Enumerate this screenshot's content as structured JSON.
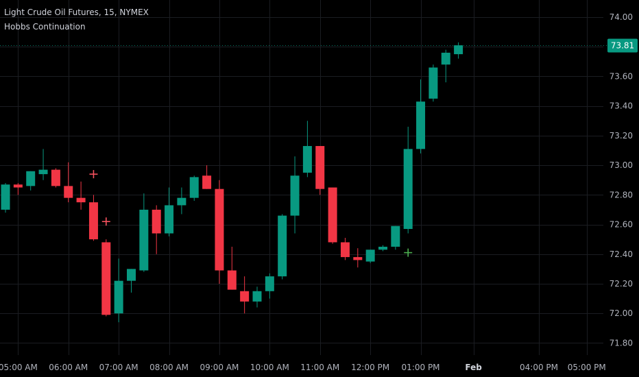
{
  "legend": {
    "title": "Light Crude Oil Futures, 15, NYMEX",
    "indicator": "Hobbs Continuation"
  },
  "colors": {
    "up": "#089981",
    "down": "#f23645",
    "up_marker": "#4caf50",
    "down_marker": "#f7525f",
    "price_label_bg": "#089981",
    "grid": "#1b1d22",
    "background": "#000000"
  },
  "chart_data": {
    "type": "candlestick",
    "title": "Light Crude Oil Futures, 15, NYMEX",
    "interval": "15",
    "last_price": 73.81,
    "last_price_label": "73.81",
    "ylim": [
      71.7,
      74.04
    ],
    "y_ticks": [
      "74.00",
      "73.80",
      "73.60",
      "73.40",
      "73.20",
      "73.00",
      "72.80",
      "72.60",
      "72.40",
      "72.20",
      "72.00",
      "71.80"
    ],
    "y_tick_values": [
      74.0,
      73.8,
      73.6,
      73.4,
      73.2,
      73.0,
      72.8,
      72.6,
      72.4,
      72.2,
      72.0,
      71.8
    ],
    "x_ticks": [
      {
        "label": "05:00 AM",
        "bar": 1
      },
      {
        "label": "06:00 AM",
        "bar": 5
      },
      {
        "label": "07:00 AM",
        "bar": 9
      },
      {
        "label": "08:00 AM",
        "bar": 13
      },
      {
        "label": "09:00 AM",
        "bar": 17
      },
      {
        "label": "10:00 AM",
        "bar": 21
      },
      {
        "label": "11:00 AM",
        "bar": 25
      },
      {
        "label": "12:00 PM",
        "bar": 29
      },
      {
        "label": "01:00 PM",
        "bar": 33
      },
      {
        "label": "Feb",
        "bar": 37.2,
        "bold": true
      },
      {
        "label": "04:00 PM",
        "bar": 42.4
      },
      {
        "label": "05:00 PM",
        "bar": 46.2
      }
    ],
    "candles": [
      {
        "o": 72.7,
        "h": 72.88,
        "l": 72.68,
        "c": 72.87
      },
      {
        "o": 72.87,
        "h": 72.88,
        "l": 72.8,
        "c": 72.85
      },
      {
        "o": 72.86,
        "h": 72.96,
        "l": 72.83,
        "c": 72.96
      },
      {
        "o": 72.94,
        "h": 73.11,
        "l": 72.9,
        "c": 72.97
      },
      {
        "o": 72.97,
        "h": 72.98,
        "l": 72.85,
        "c": 72.86
      },
      {
        "o": 72.86,
        "h": 73.02,
        "l": 72.75,
        "c": 72.78
      },
      {
        "o": 72.78,
        "h": 72.89,
        "l": 72.7,
        "c": 72.75
      },
      {
        "o": 72.75,
        "h": 72.8,
        "l": 72.49,
        "c": 72.5
      },
      {
        "o": 72.48,
        "h": 72.5,
        "l": 71.98,
        "c": 71.99
      },
      {
        "o": 72.0,
        "h": 72.37,
        "l": 71.94,
        "c": 72.22
      },
      {
        "o": 72.22,
        "h": 72.3,
        "l": 72.14,
        "c": 72.3
      },
      {
        "o": 72.29,
        "h": 72.81,
        "l": 72.28,
        "c": 72.7
      },
      {
        "o": 72.7,
        "h": 72.73,
        "l": 72.4,
        "c": 72.54
      },
      {
        "o": 72.54,
        "h": 72.85,
        "l": 72.52,
        "c": 72.73
      },
      {
        "o": 72.73,
        "h": 72.85,
        "l": 72.67,
        "c": 72.78
      },
      {
        "o": 72.78,
        "h": 72.93,
        "l": 72.76,
        "c": 72.92
      },
      {
        "o": 72.93,
        "h": 73.0,
        "l": 72.84,
        "c": 72.84
      },
      {
        "o": 72.84,
        "h": 72.9,
        "l": 72.2,
        "c": 72.29
      },
      {
        "o": 72.29,
        "h": 72.45,
        "l": 72.16,
        "c": 72.16
      },
      {
        "o": 72.15,
        "h": 72.25,
        "l": 72.0,
        "c": 72.08
      },
      {
        "o": 72.08,
        "h": 72.18,
        "l": 72.04,
        "c": 72.15
      },
      {
        "o": 72.15,
        "h": 72.27,
        "l": 72.1,
        "c": 72.25
      },
      {
        "o": 72.25,
        "h": 72.67,
        "l": 72.23,
        "c": 72.66
      },
      {
        "o": 72.66,
        "h": 73.06,
        "l": 72.54,
        "c": 72.93
      },
      {
        "o": 72.95,
        "h": 73.3,
        "l": 72.92,
        "c": 73.13
      },
      {
        "o": 73.13,
        "h": 73.13,
        "l": 72.8,
        "c": 72.84
      },
      {
        "o": 72.85,
        "h": 72.85,
        "l": 72.47,
        "c": 72.48
      },
      {
        "o": 72.48,
        "h": 72.51,
        "l": 72.36,
        "c": 72.38
      },
      {
        "o": 72.38,
        "h": 72.44,
        "l": 72.31,
        "c": 72.36
      },
      {
        "o": 72.35,
        "h": 72.43,
        "l": 72.34,
        "c": 72.43
      },
      {
        "o": 72.43,
        "h": 72.46,
        "l": 72.42,
        "c": 72.45
      },
      {
        "o": 72.45,
        "h": 72.59,
        "l": 72.43,
        "c": 72.59
      },
      {
        "o": 72.57,
        "h": 73.26,
        "l": 72.54,
        "c": 73.11
      },
      {
        "o": 73.11,
        "h": 73.58,
        "l": 73.08,
        "c": 73.43
      },
      {
        "o": 73.45,
        "h": 73.68,
        "l": 73.43,
        "c": 73.66
      },
      {
        "o": 73.68,
        "h": 73.78,
        "l": 73.56,
        "c": 73.76
      },
      {
        "o": 73.75,
        "h": 73.83,
        "l": 73.72,
        "c": 73.81
      }
    ],
    "markers": [
      {
        "bar": 7,
        "price": 72.94,
        "kind": "down"
      },
      {
        "bar": 8,
        "price": 72.62,
        "kind": "down"
      },
      {
        "bar": 32,
        "price": 72.41,
        "kind": "up"
      }
    ],
    "grid": true,
    "dotted_last_price_line": true
  }
}
